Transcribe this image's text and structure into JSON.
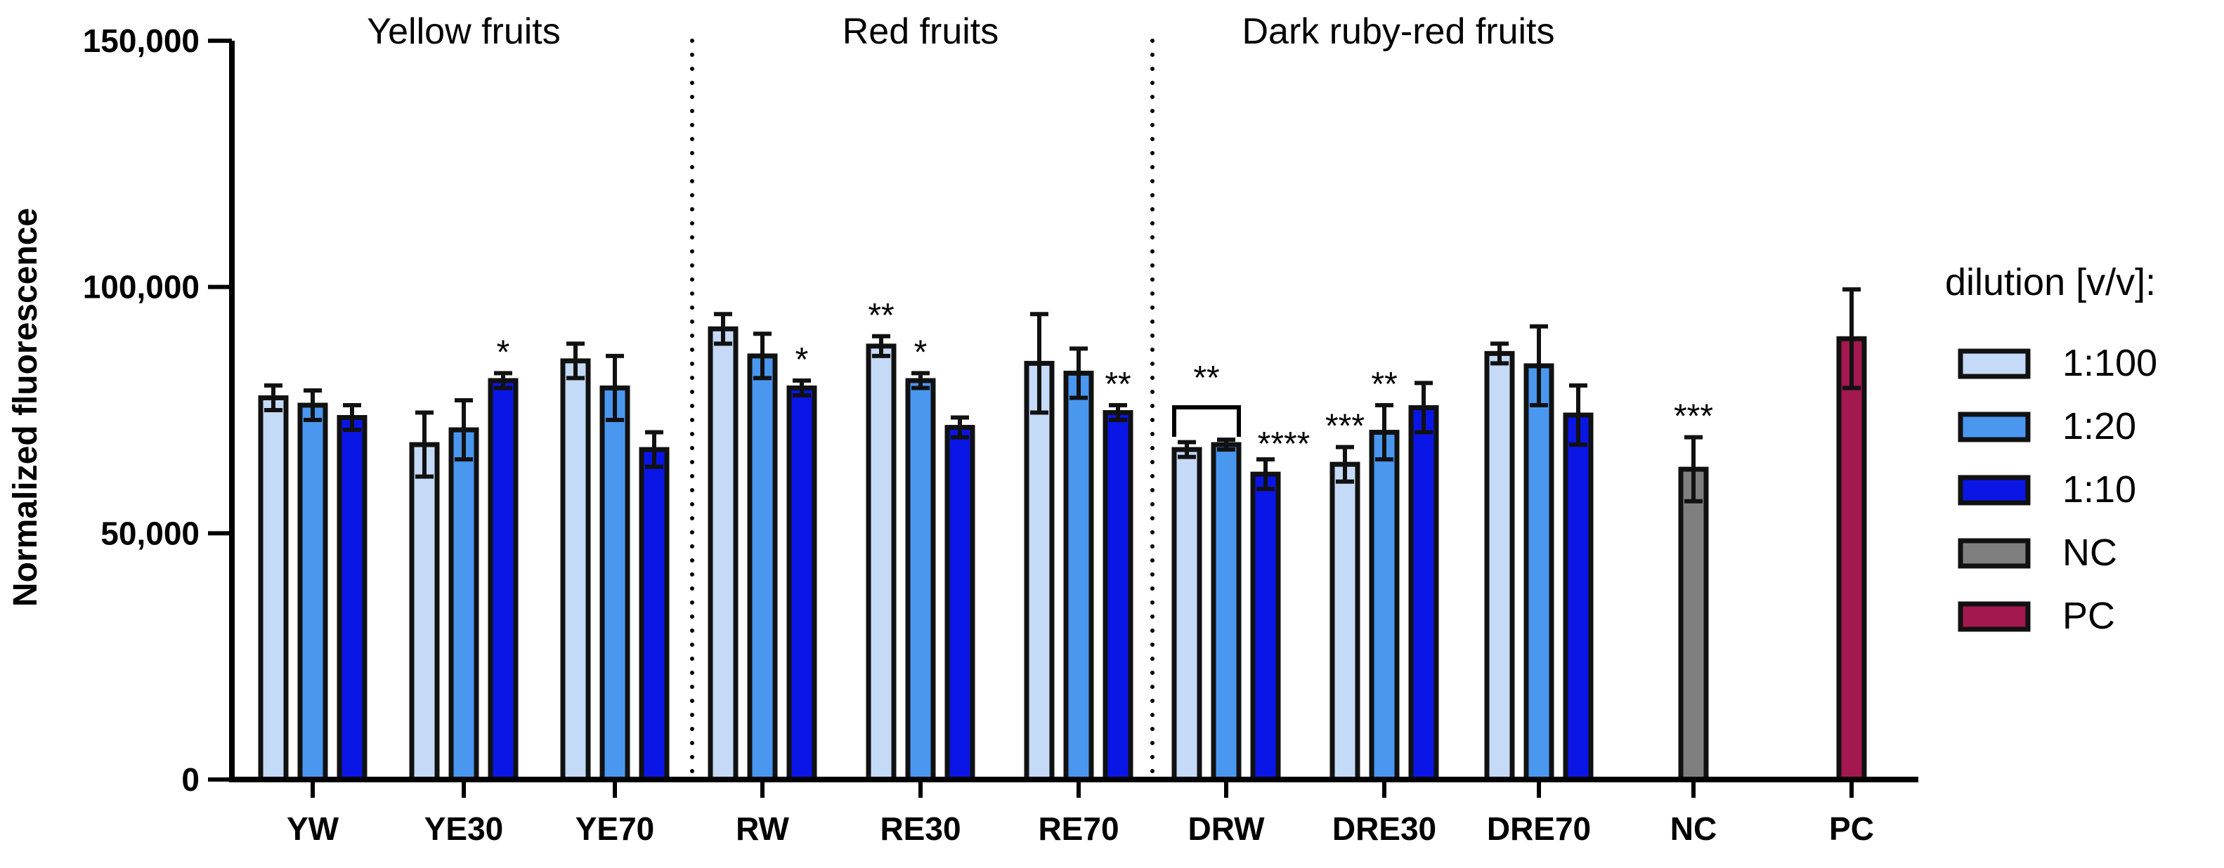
{
  "chart_data": {
    "type": "bar",
    "ylabel": "Normalized fluorescence",
    "ylim": [
      0,
      150000
    ],
    "yticks": [
      0,
      50000,
      100000,
      150000
    ],
    "ytick_labels": [
      "0",
      "50,000",
      "100,000",
      "150,000"
    ],
    "group_titles": [
      "Yellow fruits",
      "Red fruits",
      "Dark ruby-red fruits"
    ],
    "categories": [
      "YW",
      "YE30",
      "YE70",
      "RW",
      "RE30",
      "RE70",
      "DRW",
      "DRE30",
      "DRE70",
      "NC",
      "PC"
    ],
    "legend": {
      "title": "dilution [v/v]:",
      "position": "right",
      "entries": [
        {
          "label": "1:100",
          "color": "#c5daf6"
        },
        {
          "label": "1:20",
          "color": "#4a97f0"
        },
        {
          "label": "1:10",
          "color": "#0a16e6"
        },
        {
          "label": "NC",
          "color": "#7f7f7f"
        },
        {
          "label": "PC",
          "color": "#a3184f"
        }
      ]
    },
    "series": [
      {
        "name": "1:100",
        "color": "#c5daf6",
        "values": [
          77500,
          68000,
          85000,
          91500,
          88000,
          84500,
          67000,
          64000,
          86500,
          null,
          null
        ],
        "errors": [
          2500,
          6500,
          3500,
          3000,
          2000,
          10000,
          1500,
          3500,
          2000,
          null,
          null
        ],
        "significance": [
          "",
          "",
          "",
          "",
          "**",
          "",
          "",
          "***",
          "",
          "",
          ""
        ]
      },
      {
        "name": "1:20",
        "color": "#4a97f0",
        "values": [
          76000,
          71000,
          79500,
          86000,
          81000,
          82500,
          68000,
          70500,
          84000,
          null,
          null
        ],
        "errors": [
          3000,
          6000,
          6500,
          4500,
          1500,
          5000,
          1000,
          5500,
          8000,
          null,
          null
        ],
        "significance": [
          "",
          "",
          "",
          "",
          "*",
          "",
          "",
          "**",
          "",
          "",
          ""
        ]
      },
      {
        "name": "1:10",
        "color": "#0a16e6",
        "values": [
          73500,
          81000,
          67000,
          79500,
          71500,
          74500,
          62000,
          75500,
          74000,
          null,
          null
        ],
        "errors": [
          2500,
          1500,
          3500,
          1500,
          2000,
          1500,
          3000,
          5000,
          6000,
          null,
          null
        ],
        "significance": [
          "",
          "*",
          "",
          "*",
          "",
          "**",
          "****",
          "",
          "",
          "",
          ""
        ]
      },
      {
        "name": "NC",
        "color": "#7f7f7f",
        "values": [
          null,
          null,
          null,
          null,
          null,
          null,
          null,
          null,
          null,
          63000,
          null
        ],
        "errors": [
          null,
          null,
          null,
          null,
          null,
          null,
          null,
          null,
          null,
          6500,
          null
        ],
        "significance": [
          "",
          "",
          "",
          "",
          "",
          "",
          "",
          "",
          "",
          "***",
          ""
        ]
      },
      {
        "name": "PC",
        "color": "#a3184f",
        "values": [
          null,
          null,
          null,
          null,
          null,
          null,
          null,
          null,
          null,
          null,
          89500
        ],
        "errors": [
          null,
          null,
          null,
          null,
          null,
          null,
          null,
          null,
          null,
          null,
          10000
        ],
        "significance": [
          "",
          "",
          "",
          "",
          "",
          "",
          "",
          "",
          "",
          "",
          ""
        ]
      }
    ],
    "bracket_annotations": [
      {
        "category": "DRW",
        "from_series": "1:100",
        "to_series": "1:20",
        "label": "**"
      }
    ]
  }
}
